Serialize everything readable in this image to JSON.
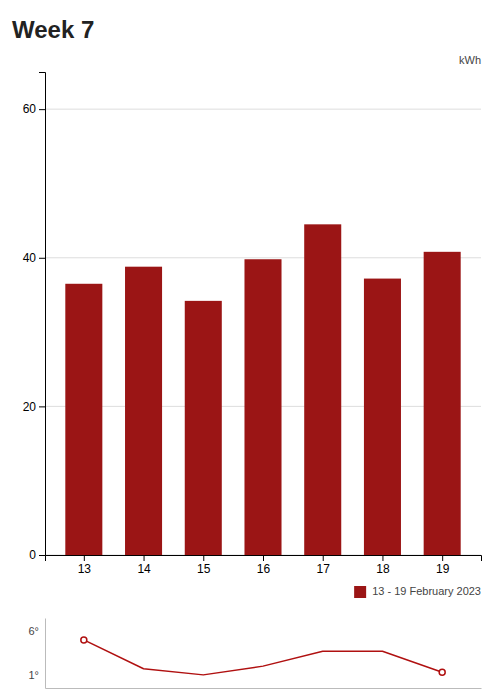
{
  "chart_data": [
    {
      "type": "bar",
      "title": "Week 7",
      "y_label": "kWh",
      "x": [
        13,
        14,
        15,
        16,
        17,
        18,
        19
      ],
      "series": [
        {
          "name": "13 - 19 February 2023",
          "color": "#9B1515",
          "values": [
            36.5,
            38.8,
            34.2,
            39.8,
            44.5,
            37.2,
            40.8
          ]
        }
      ],
      "xlim": [
        12.35,
        19.65
      ],
      "xticks": [
        13,
        14,
        15,
        16,
        17,
        18,
        19
      ],
      "ylim": [
        0,
        65
      ],
      "yticks": [
        0,
        20,
        40,
        60
      ],
      "grid": true,
      "legend": "bottom"
    },
    {
      "type": "line",
      "x": [
        13,
        14,
        15,
        16,
        17,
        18,
        19
      ],
      "values": [
        5.5,
        2.2,
        1.5,
        2.5,
        4.2,
        4.2,
        1.8
      ],
      "color": "#b01010",
      "xlim": [
        12.35,
        19.65
      ],
      "ylim": [
        0,
        8
      ],
      "tick_labels": false,
      "annotations": [
        "6°",
        "1°"
      ]
    }
  ]
}
